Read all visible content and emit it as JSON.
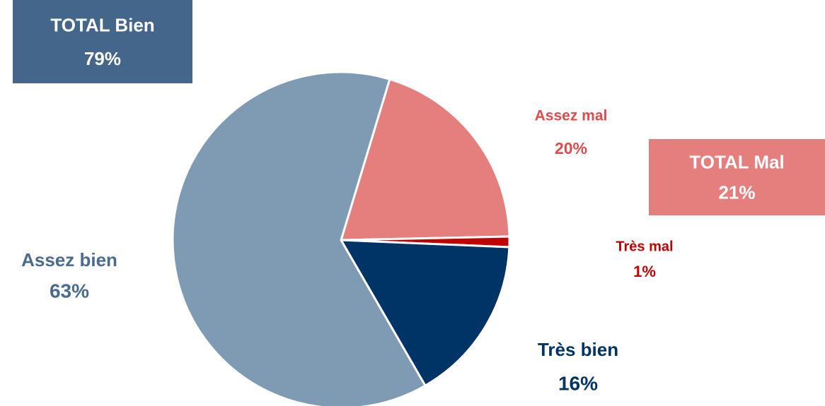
{
  "chart_data": {
    "type": "pie",
    "categories": [
      "Assez mal",
      "Très mal",
      "Très bien",
      "Assez bien"
    ],
    "values": [
      20,
      1,
      16,
      63
    ],
    "value_labels": [
      "20%",
      "1%",
      "16%",
      "63%"
    ],
    "colors": [
      "#e47f7e",
      "#c00000",
      "#003366",
      "#7f9ab3"
    ],
    "label_colors": [
      "#dd4b4b",
      "#c00000",
      "#003366",
      "#4a6a8e"
    ],
    "annotations": [
      {
        "text": "TOTAL Bien",
        "label": "79%",
        "color": "#43668a"
      },
      {
        "text": "TOTAL Mal",
        "label": "21%",
        "color": "#e47f7e"
      }
    ]
  }
}
